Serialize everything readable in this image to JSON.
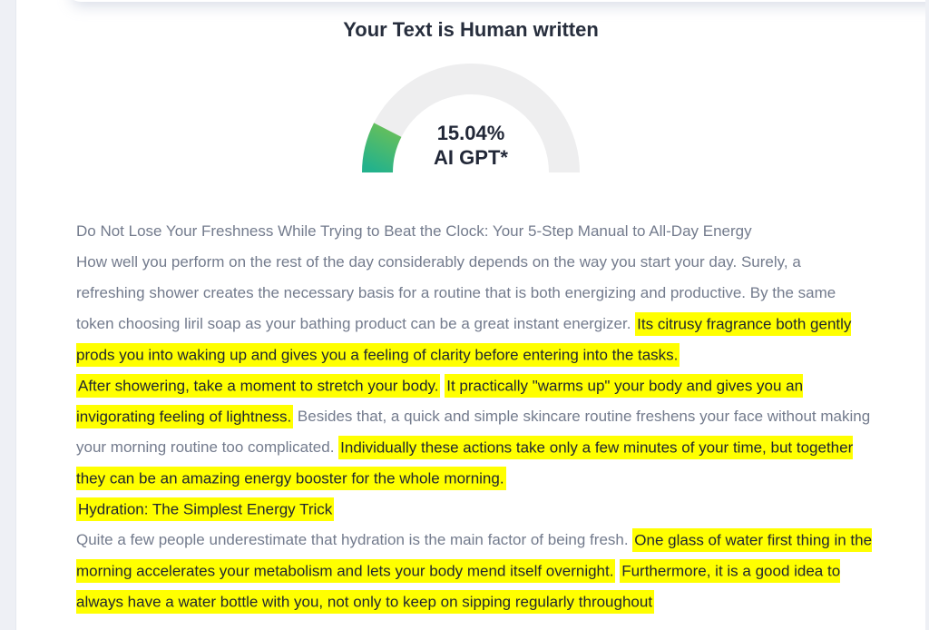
{
  "result": {
    "title": "Your Text is Human written",
    "gauge": {
      "value": 15.04,
      "percent_text": "15.04%",
      "label": "AI GPT*",
      "track_color": "#eeeeef",
      "fill_gradient_start": "#23b28c",
      "fill_gradient_end": "#8cc63f",
      "text_color": "#222838"
    }
  },
  "chart_data": {
    "type": "gauge",
    "title": "AI GPT*",
    "value": 15.04,
    "range": [
      0,
      100
    ],
    "unit": "%",
    "annotation": "15.04% AI GPT*"
  },
  "document": {
    "highlight_color": "#ffff00",
    "paragraphs": [
      {
        "segments": [
          {
            "highlight": false,
            "text": "Do Not Lose Your Freshness While Trying to Beat the Clock: Your 5-Step Manual to All-Day Energy"
          }
        ]
      },
      {
        "segments": [
          {
            "highlight": false,
            "text": "How well you perform on the rest of the day considerably depends on the way you start your day. Surely, a refreshing shower creates the necessary basis for a routine that is both energizing and productive. By the same token choosing liril soap as your bathing product can be a great instant energizer. "
          },
          {
            "highlight": true,
            "text": "Its citrusy fragrance both gently prods you into waking up and gives you a feeling of clarity before entering into the tasks."
          }
        ]
      },
      {
        "segments": [
          {
            "highlight": true,
            "text": "After showering, take a moment to stretch your body."
          },
          {
            "highlight": false,
            "text": " "
          },
          {
            "highlight": true,
            "text": "It practically \"warms up\" your body and gives you an invigorating feeling of lightness."
          },
          {
            "highlight": false,
            "text": " Besides that, a quick and simple skincare routine freshens your face without making your morning routine too complicated. "
          },
          {
            "highlight": true,
            "text": "Individually these actions take only a few minutes of your time, but together they can be an amazing energy booster for the whole morning."
          }
        ]
      },
      {
        "segments": [
          {
            "highlight": true,
            "text": "Hydration: The Simplest Energy Trick"
          }
        ]
      },
      {
        "segments": [
          {
            "highlight": false,
            "text": "Quite a few people underestimate that hydration is the main factor of being fresh. "
          },
          {
            "highlight": true,
            "text": "One glass of water first thing in the morning accelerates your metabolism and lets your body mend itself overnight."
          },
          {
            "highlight": false,
            "text": " "
          },
          {
            "highlight": true,
            "text": "Furthermore, it is a good idea to always have a water bottle with you, not only to keep on sipping regularly throughout"
          }
        ]
      }
    ]
  }
}
